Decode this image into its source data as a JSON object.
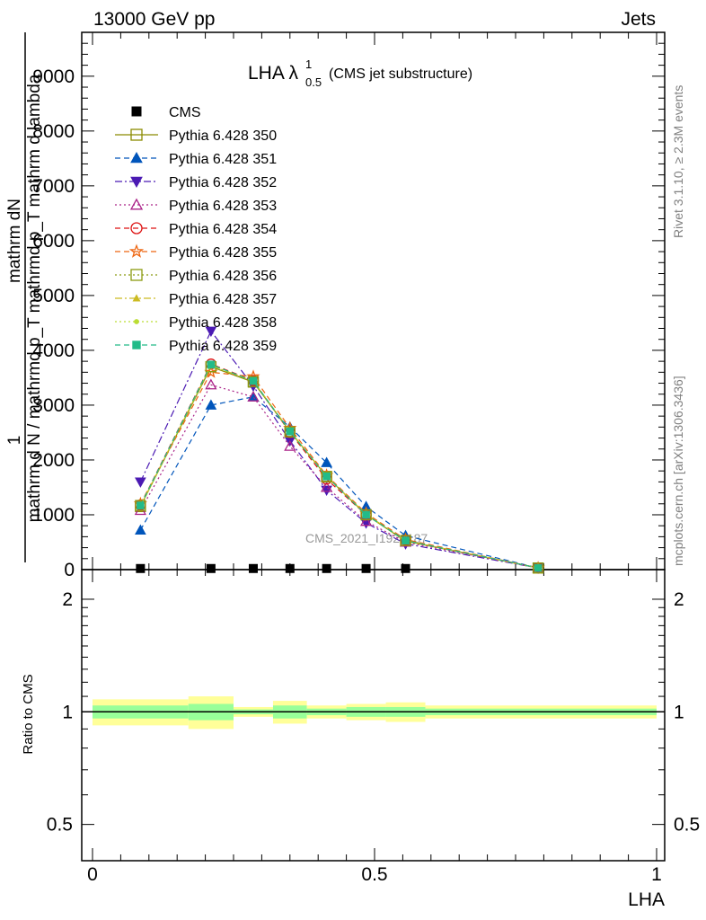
{
  "header": {
    "left": "13000 GeV pp",
    "right": "Jets"
  },
  "plot_title": {
    "main": "LHA λ",
    "sup": "1",
    "sub": "0.5",
    "note": "(CMS jet substructure)"
  },
  "side_text": {
    "top": "Rivet 3.1.10, ≥ 2.3M events",
    "bottom": "mcplots.cern.ch [arXiv:1306.3436]"
  },
  "watermark": "CMS_2021_I1920187",
  "main_axis": {
    "ylabel_numerator": "mathrm dN",
    "ylabel_fraction": "1",
    "ylabel_denominator": "mathrm d N / mathrmd p_T mathrmd p_T mathrm d lambda",
    "ytick_labels": [
      "0",
      "1000",
      "2000",
      "3000",
      "4000",
      "5000",
      "6000",
      "7000",
      "8000",
      "9000"
    ]
  },
  "ratio_axis": {
    "ylabel": "Ratio to CMS",
    "ytick_labels": [
      "0.5",
      "1",
      "2"
    ],
    "xtick_labels": [
      "0",
      "0.5",
      "1"
    ],
    "xlabel": "LHA"
  },
  "colors": {
    "cms": "#000000",
    "band_inner": "#99ff99",
    "band_outer": "#ffff99"
  },
  "chart_data": {
    "type": "line",
    "title": "LHA λ^1_0.5 (CMS jet substructure)",
    "xlabel": "LHA",
    "ylabel": "1/N dN/dλ",
    "xlim": [
      0,
      1
    ],
    "ylim": [
      0,
      9800
    ],
    "grid": false,
    "legend_placement": "top-left",
    "x": [
      0.085,
      0.21,
      0.285,
      0.35,
      0.415,
      0.485,
      0.555,
      0.79
    ],
    "series": [
      {
        "name": "CMS",
        "color": "#000000",
        "marker": "square",
        "dash": "solid",
        "values": [
          20,
          20,
          20,
          20,
          20,
          20,
          20,
          null
        ]
      },
      {
        "name": "Pythia 6.428 350",
        "color": "#8b8b00",
        "marker": "open-square",
        "dash": "solid",
        "values": [
          1150,
          3700,
          3420,
          2520,
          1700,
          1000,
          520,
          30
        ]
      },
      {
        "name": "Pythia 6.428 351",
        "color": "#0055bb",
        "marker": "triangle-up",
        "dash": "dashed",
        "values": [
          720,
          3000,
          3150,
          2600,
          1950,
          1150,
          620,
          30
        ]
      },
      {
        "name": "Pythia 6.428 352",
        "color": "#4b1ab3",
        "marker": "triangle-down",
        "dash": "dashdot",
        "values": [
          1600,
          4350,
          3350,
          2350,
          1450,
          850,
          470,
          30
        ]
      },
      {
        "name": "Pythia 6.428 353",
        "color": "#aa2288",
        "marker": "open-triangle-up",
        "dash": "dotted",
        "values": [
          1080,
          3370,
          3150,
          2250,
          1500,
          880,
          500,
          30
        ]
      },
      {
        "name": "Pythia 6.428 354",
        "color": "#dd1111",
        "marker": "open-circle",
        "dash": "dashed",
        "values": [
          1180,
          3750,
          3450,
          2500,
          1650,
          1000,
          540,
          30
        ]
      },
      {
        "name": "Pythia 6.428 355",
        "color": "#ee6611",
        "marker": "open-star",
        "dash": "dashed",
        "values": [
          1200,
          3600,
          3520,
          2580,
          1720,
          1030,
          550,
          30
        ]
      },
      {
        "name": "Pythia 6.428 356",
        "color": "#8b9b10",
        "marker": "open-square",
        "dash": "dotted",
        "values": [
          1170,
          3700,
          3430,
          2510,
          1690,
          1000,
          530,
          30
        ]
      },
      {
        "name": "Pythia 6.428 357",
        "color": "#ccbb22",
        "marker": "tri-small",
        "dash": "dashdot",
        "values": [
          1160,
          3720,
          3440,
          2530,
          1700,
          1010,
          530,
          30
        ]
      },
      {
        "name": "Pythia 6.428 358",
        "color": "#bbdd33",
        "marker": "dot",
        "dash": "dotted",
        "values": [
          1150,
          3730,
          3440,
          2520,
          1700,
          1000,
          530,
          30
        ]
      },
      {
        "name": "Pythia 6.428 359",
        "color": "#22bb88",
        "marker": "small-square",
        "dash": "dashed",
        "values": [
          1170,
          3740,
          3440,
          2520,
          1700,
          1000,
          530,
          30
        ]
      }
    ],
    "ratio_panel": {
      "ylabel": "Ratio to CMS",
      "ylim": [
        0.4,
        2.4
      ],
      "scale": "log",
      "bin_edges": [
        0.0,
        0.17,
        0.25,
        0.32,
        0.38,
        0.45,
        0.52,
        0.59,
        1.0
      ],
      "inner_band": [
        [
          0.96,
          1.04
        ],
        [
          0.95,
          1.05
        ],
        [
          0.985,
          1.015
        ],
        [
          0.96,
          1.04
        ],
        [
          0.98,
          1.02
        ],
        [
          0.97,
          1.03
        ],
        [
          0.97,
          1.03
        ],
        [
          0.98,
          1.02
        ]
      ],
      "outer_band": [
        [
          0.92,
          1.08
        ],
        [
          0.9,
          1.1
        ],
        [
          0.97,
          1.03
        ],
        [
          0.93,
          1.07
        ],
        [
          0.96,
          1.04
        ],
        [
          0.95,
          1.05
        ],
        [
          0.94,
          1.06
        ],
        [
          0.96,
          1.04
        ]
      ]
    }
  }
}
